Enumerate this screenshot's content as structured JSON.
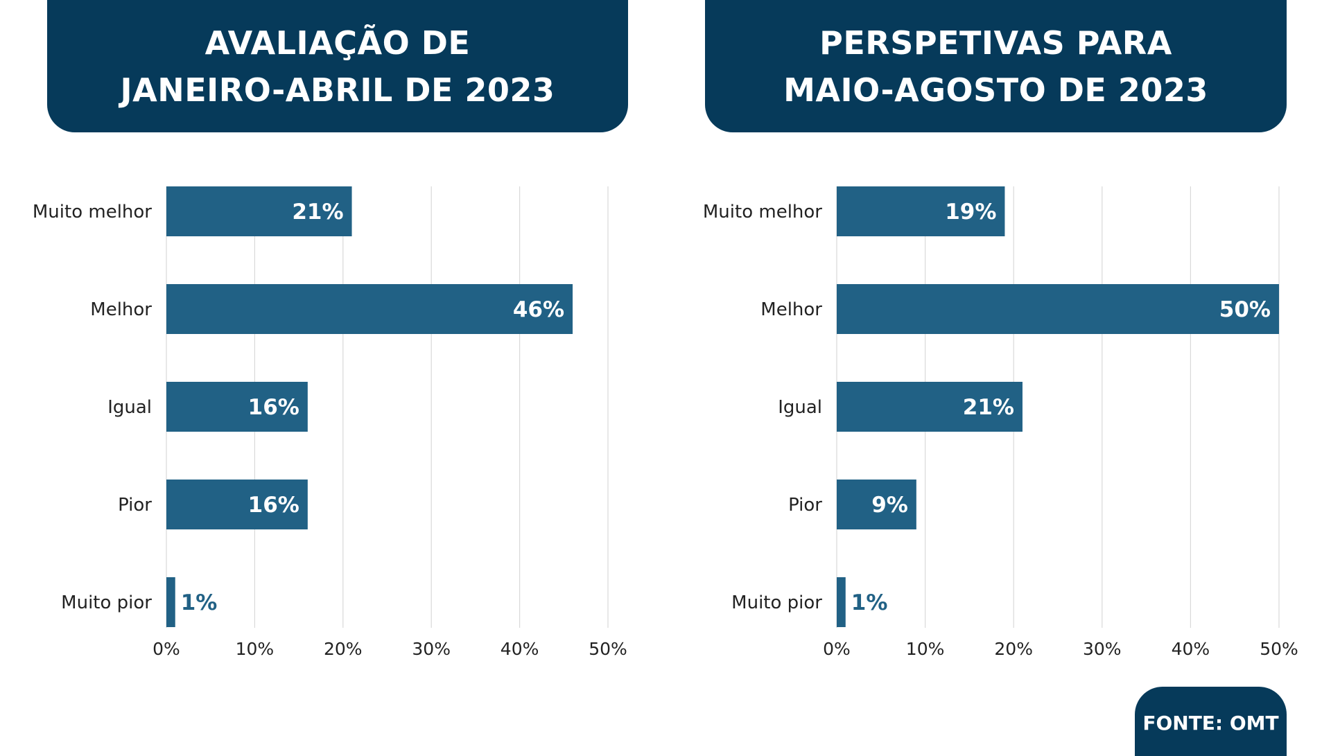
{
  "colors": {
    "header_bg": "#063a5a",
    "bar": "#216185",
    "grid": "#d9d9d9",
    "label_in_bar": "#ffffff",
    "label_out_bar": "#216185",
    "axis_text": "#222222"
  },
  "headers": {
    "left": {
      "line1": "AVALIAÇÃO DE",
      "line2": "JANEIRO-ABRIL DE 2023"
    },
    "right": {
      "line1": "PERSPETIVAS PARA",
      "line2": "MAIO-AGOSTO DE 2023"
    }
  },
  "source": {
    "label": "FONTE: OMT"
  },
  "chart_data": [
    {
      "type": "bar",
      "orientation": "horizontal",
      "title": "AVALIAÇÃO DE JANEIRO-ABRIL DE 2023",
      "categories": [
        "Muito melhor",
        "Melhor",
        "Igual",
        "Pior",
        "Muito pior"
      ],
      "values": [
        21,
        46,
        16,
        16,
        1
      ],
      "data_labels": [
        "21%",
        "46%",
        "16%",
        "16%",
        "1%"
      ],
      "xlim": [
        0,
        50
      ],
      "xticks": [
        "0%",
        "10%",
        "20%",
        "30%",
        "40%",
        "50%"
      ],
      "grid": true
    },
    {
      "type": "bar",
      "orientation": "horizontal",
      "title": "PERSPETIVAS PARA MAIO-AGOSTO DE 2023",
      "categories": [
        "Muito melhor",
        "Melhor",
        "Igual",
        "Pior",
        "Muito pior"
      ],
      "values": [
        19,
        50,
        21,
        9,
        1
      ],
      "data_labels": [
        "19%",
        "50%",
        "21%",
        "9%",
        "1%"
      ],
      "xlim": [
        0,
        50
      ],
      "xticks": [
        "0%",
        "10%",
        "20%",
        "30%",
        "40%",
        "50%"
      ],
      "grid": true
    }
  ]
}
